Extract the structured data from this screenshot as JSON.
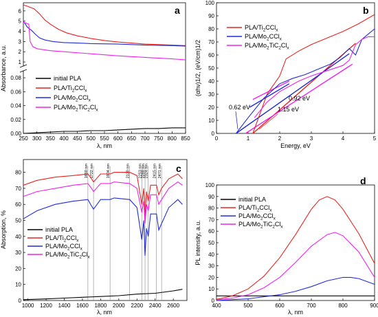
{
  "colors": {
    "black": "#000000",
    "red": "#e8231f",
    "blue": "#1f2bd6",
    "magenta": "#ee22ee"
  },
  "chart_data": [
    {
      "panel_label": "a",
      "type": "line",
      "xlabel": "λ, nm",
      "ylabel": "Absorbance, a.u.",
      "xlim": [
        250,
        850
      ],
      "xticks": [
        "250",
        "300",
        "350",
        "400",
        "450",
        "500",
        "550",
        "600",
        "650",
        "700",
        "750",
        "800",
        "850"
      ],
      "y_lower_ticks": [
        "0.00",
        "0.02",
        "0.04",
        "0.06",
        "0.08"
      ],
      "y_upper_ticks": [
        "1",
        "2",
        "3",
        "4",
        "5",
        "6"
      ],
      "axis_break": {
        "lower_range": [
          0,
          0.09
        ],
        "upper_range": [
          0.6,
          6.8
        ]
      },
      "legend": {
        "placement": "center-right"
      },
      "series": [
        {
          "name": "initial PLA",
          "color": "black",
          "segment": "lower",
          "x": [
            250,
            300,
            350,
            400,
            450,
            500,
            550,
            600,
            650,
            700,
            750,
            800,
            850
          ],
          "y": [
            0.0,
            0.001,
            0.002,
            0.003,
            0.003,
            0.004,
            0.004,
            0.005,
            0.006,
            0.007,
            0.007,
            0.008,
            0.008
          ]
        },
        {
          "name": "PLA/Ti2CClx",
          "color": "red",
          "segment": "upper",
          "x": [
            250,
            270,
            290,
            310,
            330,
            350,
            380,
            410,
            450,
            500,
            550,
            600,
            650,
            700,
            750,
            800,
            850
          ],
          "y": [
            6.6,
            6.4,
            6.2,
            5.7,
            5.1,
            4.7,
            4.2,
            3.85,
            3.55,
            3.3,
            3.1,
            2.95,
            2.85,
            2.75,
            2.7,
            2.65,
            2.6
          ]
        },
        {
          "name": "PLA/Mo2CClx",
          "color": "blue",
          "segment": "upper",
          "x": [
            250,
            265,
            280,
            295,
            310,
            330,
            360,
            400,
            450,
            500,
            600,
            700,
            800,
            850
          ],
          "y": [
            5.0,
            4.4,
            4.1,
            3.7,
            3.35,
            3.15,
            3.0,
            2.9,
            2.85,
            2.8,
            2.75,
            2.65,
            2.6,
            2.55
          ]
        },
        {
          "name": "PLA/Mo2TiC2Clx",
          "color": "magenta",
          "segment": "upper",
          "x": [
            250,
            270,
            275,
            285,
            300,
            350,
            400,
            500,
            600,
            700,
            800,
            850
          ],
          "y": [
            4.9,
            4.7,
            3.0,
            2.5,
            2.3,
            2.1,
            2.0,
            1.8,
            1.6,
            1.45,
            1.3,
            1.2
          ]
        }
      ]
    },
    {
      "panel_label": "b",
      "type": "line",
      "xlabel": "Energy, eV",
      "ylabel": "(αhν)1/2, (eV/cm)1/2",
      "xlim": [
        0,
        5
      ],
      "ylim": [
        0,
        100
      ],
      "xticks": [
        "0",
        "1",
        "2",
        "3",
        "4",
        "5"
      ],
      "yticks": [
        "0",
        "10",
        "20",
        "30",
        "40",
        "50",
        "60",
        "70",
        "80",
        "90",
        "100"
      ],
      "legend": {
        "placement": "top-center"
      },
      "annotations": [
        {
          "text": "0.62 eV",
          "color": "blue",
          "x": 0.62
        },
        {
          "text": "0.92 eV",
          "color": "magenta",
          "x": 0.92
        },
        {
          "text": "1.15 eV",
          "color": "red",
          "x": 1.15
        }
      ],
      "series": [
        {
          "name": "PLA/Ti2CClx",
          "color": "red",
          "x": [
            1.15,
            1.6,
            2.0,
            2.2,
            2.6,
            3.0,
            3.5,
            4.0,
            4.5,
            5.0
          ],
          "y": [
            0,
            30,
            44,
            57,
            63,
            68,
            73,
            78,
            84,
            91
          ]
        },
        {
          "name": "PLA/Mo2CClx",
          "color": "blue",
          "x": [
            0.62,
            1.0,
            1.5,
            2.0,
            2.4,
            2.8,
            3.2,
            3.6,
            3.9,
            4.2,
            4.4,
            4.6,
            4.8,
            5.0
          ],
          "y": [
            0,
            12,
            27,
            38,
            42,
            45,
            49,
            53,
            58,
            65,
            60,
            72,
            76,
            80
          ]
        },
        {
          "name": "PLA/Mo2TiC2Clx",
          "color": "magenta",
          "x": [
            1.2,
            1.6,
            2.0,
            2.6,
            3.0,
            3.5,
            4.0,
            4.2,
            4.4,
            4.6,
            4.8,
            5.0
          ],
          "y": [
            12,
            24,
            32,
            40,
            44,
            48,
            52,
            56,
            68,
            72,
            74,
            74
          ]
        }
      ],
      "tangents": [
        {
          "color": "red",
          "x": [
            1.15,
            4.4
          ],
          "y": [
            0,
            69
          ]
        },
        {
          "color": "blue",
          "x": [
            0.62,
            4.2
          ],
          "y": [
            0,
            61
          ]
        },
        {
          "color": "magenta",
          "x": [
            0.92,
            4.3
          ],
          "y": [
            0,
            53
          ]
        },
        {
          "color": "blue",
          "x": [
            1.05,
            2.3
          ],
          "y": [
            20,
            38
          ]
        },
        {
          "color": "magenta",
          "x": [
            1.15,
            2.3
          ],
          "y": [
            26,
            40
          ]
        }
      ]
    },
    {
      "panel_label": "c",
      "type": "line",
      "xlabel": "λ, nm",
      "ylabel": "Absorption, %",
      "xlim": [
        950,
        2750
      ],
      "ylim": [
        0,
        88
      ],
      "xticks": [
        "1000",
        "1200",
        "1400",
        "1600",
        "1800",
        "2000",
        "2200",
        "2400",
        "2600"
      ],
      "yticks": [
        "0",
        "10",
        "20",
        "30",
        "40",
        "50",
        "60",
        "70",
        "80"
      ],
      "legend": {
        "placement": "center-left"
      },
      "vlines": [
        {
          "x": 1660,
          "label": "1660 nm"
        },
        {
          "x": 1722,
          "label": "1722 nm"
        },
        {
          "x": 1904,
          "label": "1904 nm"
        },
        {
          "x": 2120,
          "label": "2120 nm"
        },
        {
          "x": 2253,
          "label": "2253 nm"
        },
        {
          "x": 2289,
          "label": "2289 nm"
        },
        {
          "x": 2324,
          "label": "2324 nm"
        },
        {
          "x": 2415,
          "label": "2415 nm"
        },
        {
          "x": 2471,
          "label": "2471 nm"
        }
      ],
      "series": [
        {
          "name": "initial PLA",
          "color": "black",
          "x": [
            950,
            1200,
            1400,
            1600,
            1800,
            2000,
            2200,
            2400,
            2600,
            2700
          ],
          "y": [
            0.5,
            1.0,
            1.5,
            2.0,
            2.5,
            3.0,
            4.0,
            4.5,
            6.0,
            7.0
          ]
        },
        {
          "name": "PLA/Ti2CClx",
          "color": "red",
          "x": [
            950,
            1100,
            1300,
            1500,
            1660,
            1700,
            1722,
            1800,
            1904,
            1950,
            2120,
            2200,
            2253,
            2275,
            2289,
            2305,
            2324,
            2350,
            2415,
            2440,
            2471,
            2550,
            2650,
            2700
          ],
          "y": [
            72,
            75,
            77,
            78,
            79,
            76,
            74,
            79,
            79,
            80,
            80,
            78,
            60,
            70,
            52,
            68,
            62,
            72,
            72,
            66,
            70,
            76,
            79,
            76
          ]
        },
        {
          "name": "PLA/Mo2CClx",
          "color": "blue",
          "x": [
            950,
            1100,
            1300,
            1500,
            1660,
            1700,
            1722,
            1800,
            1904,
            1950,
            2120,
            2200,
            2253,
            2275,
            2289,
            2305,
            2324,
            2350,
            2415,
            2440,
            2471,
            2550,
            2650,
            2700
          ],
          "y": [
            51,
            56,
            60,
            62,
            63,
            59,
            57,
            63,
            63,
            64,
            63,
            58,
            38,
            50,
            28,
            45,
            40,
            54,
            54,
            44,
            48,
            58,
            63,
            60
          ]
        },
        {
          "name": "PLA/Mo2TiC2Clx",
          "color": "magenta",
          "x": [
            950,
            1100,
            1300,
            1500,
            1660,
            1700,
            1722,
            1800,
            1904,
            1950,
            2120,
            2200,
            2253,
            2275,
            2289,
            2305,
            2324,
            2350,
            2415,
            2440,
            2471,
            2550,
            2650,
            2700
          ],
          "y": [
            65,
            68,
            70,
            72,
            73,
            70,
            68,
            73,
            73,
            74,
            73,
            70,
            55,
            62,
            48,
            60,
            56,
            66,
            66,
            60,
            63,
            70,
            74,
            72
          ]
        }
      ]
    },
    {
      "panel_label": "d",
      "type": "line",
      "xlabel": "λ, nm",
      "ylabel": "PL intensity, a.u.",
      "xlim": [
        400,
        900
      ],
      "ylim": [
        0,
        100
      ],
      "xticks": [
        "400",
        "500",
        "600",
        "700",
        "800",
        "900"
      ],
      "yticks": [
        "0",
        "10",
        "20",
        "30",
        "40",
        "50",
        "60",
        "70",
        "80",
        "90",
        "100"
      ],
      "legend": {
        "placement": "top-left"
      },
      "series": [
        {
          "name": "initial PLA",
          "color": "black",
          "x": [
            400,
            500,
            600,
            700,
            800,
            900
          ],
          "y": [
            4,
            4,
            4,
            4,
            4,
            4
          ]
        },
        {
          "name": "PLA/Ti2CClx",
          "color": "red",
          "x": [
            400,
            450,
            500,
            550,
            600,
            650,
            700,
            725,
            750,
            775,
            800,
            850,
            900
          ],
          "y": [
            1,
            4,
            10,
            21,
            37,
            57,
            79,
            87,
            90,
            87,
            79,
            58,
            32
          ]
        },
        {
          "name": "PLA/Mo2CClx",
          "color": "blue",
          "x": [
            400,
            500,
            600,
            650,
            700,
            750,
            800,
            825,
            850,
            900
          ],
          "y": [
            0,
            1.5,
            5,
            8,
            12,
            17,
            20,
            20,
            19,
            14
          ]
        },
        {
          "name": "PLA/Mo2TiC2Clx",
          "color": "magenta",
          "x": [
            400,
            450,
            500,
            550,
            600,
            650,
            700,
            750,
            775,
            800,
            850,
            900
          ],
          "y": [
            0.5,
            2,
            5,
            11,
            20,
            33,
            47,
            57,
            59,
            56,
            42,
            20
          ]
        }
      ]
    }
  ]
}
